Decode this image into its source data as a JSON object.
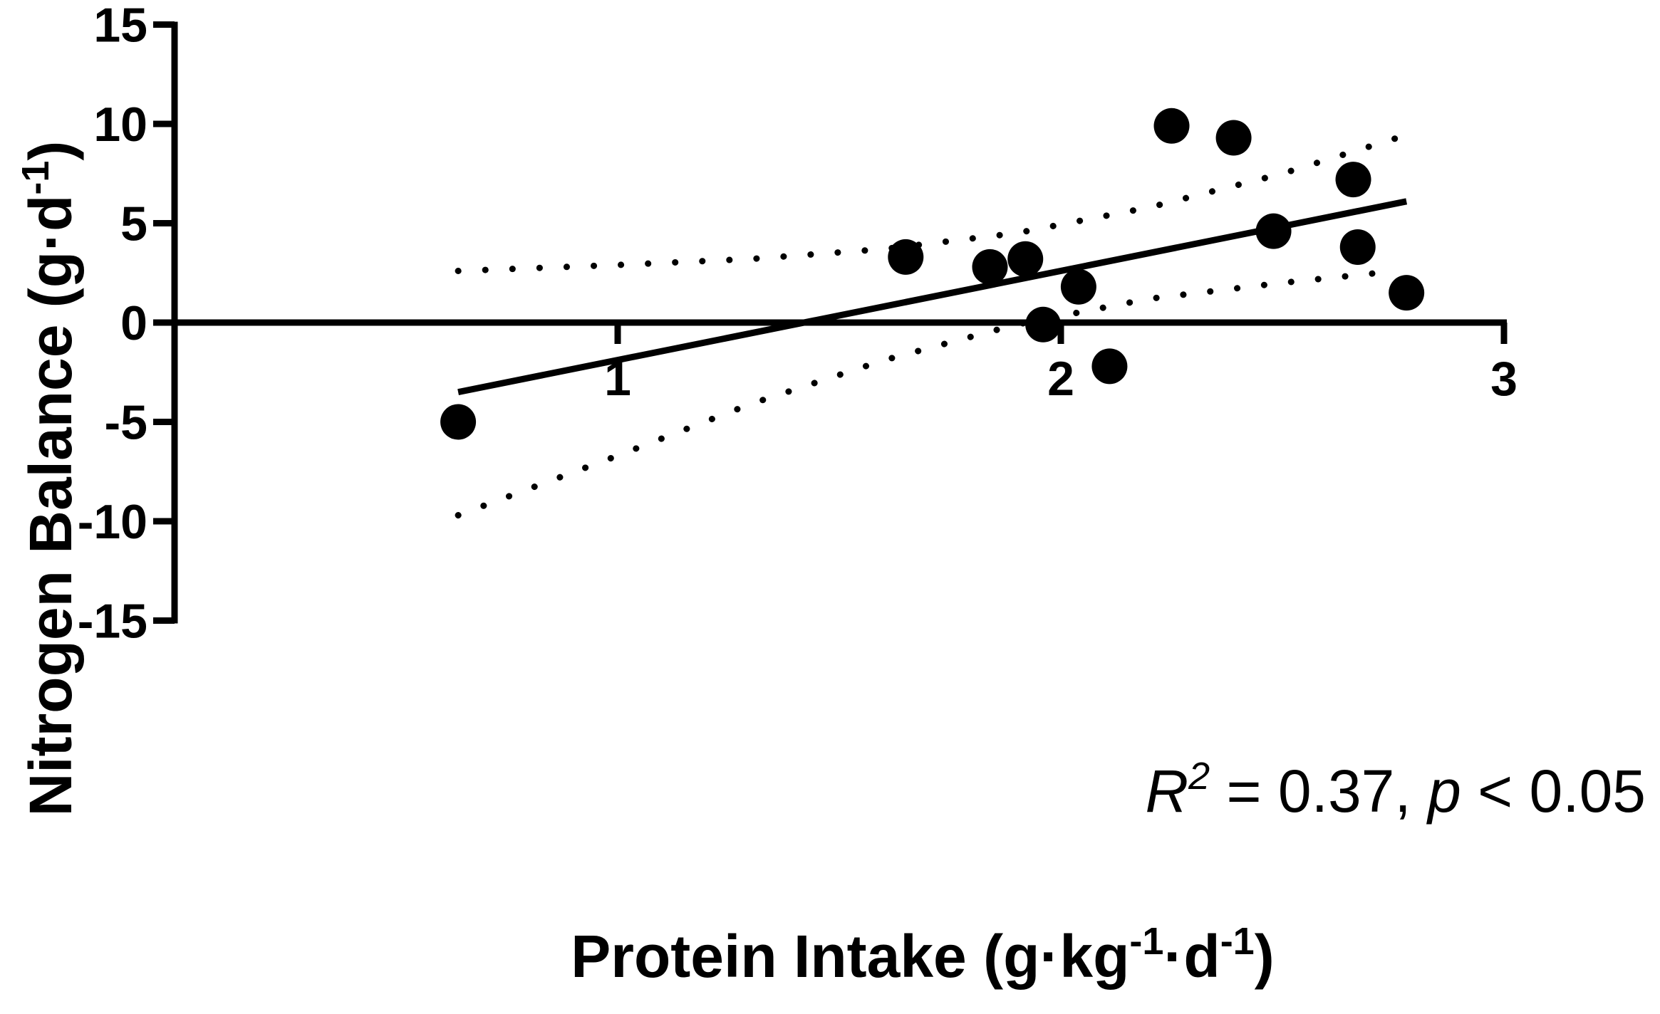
{
  "chart_data": {
    "type": "scatter",
    "title": "",
    "xlabel": {
      "main": "Protein Intake (g·kg",
      "sup1": "-1",
      "mid": "·d",
      "sup2": "-1",
      "end": ")"
    },
    "ylabel": {
      "main": "Nitrogen Balance (g·d",
      "sup": "-1",
      "end": ")"
    },
    "xlim": [
      0,
      3
    ],
    "ylim": [
      -15,
      15
    ],
    "x_ticks": [
      1,
      2,
      3
    ],
    "x_tick_labels": [
      "1",
      "2",
      "3"
    ],
    "y_ticks": [
      -15,
      -10,
      -5,
      0,
      5,
      10,
      15
    ],
    "y_tick_labels": [
      "-15",
      "-10",
      "-5",
      "0",
      "5",
      "10",
      "15"
    ],
    "grid": false,
    "colors": {
      "points": "#000000",
      "lines": "#000000"
    },
    "points": [
      {
        "x": 0.64,
        "y": -5.0
      },
      {
        "x": 1.65,
        "y": 3.3
      },
      {
        "x": 1.84,
        "y": 2.8
      },
      {
        "x": 1.92,
        "y": 3.2
      },
      {
        "x": 1.96,
        "y": -0.1
      },
      {
        "x": 2.04,
        "y": 1.8
      },
      {
        "x": 2.11,
        "y": -2.2
      },
      {
        "x": 2.25,
        "y": 9.9
      },
      {
        "x": 2.39,
        "y": 9.3
      },
      {
        "x": 2.48,
        "y": 4.6
      },
      {
        "x": 2.66,
        "y": 7.2
      },
      {
        "x": 2.67,
        "y": 3.8
      },
      {
        "x": 2.78,
        "y": 1.5
      }
    ],
    "regression_line": {
      "x": [
        0.64,
        2.78
      ],
      "y": [
        -3.5,
        6.1
      ]
    },
    "confidence_upper": {
      "x": [
        0.64,
        1.0,
        1.3,
        1.6,
        1.9,
        2.2,
        2.5,
        2.76
      ],
      "y": [
        2.6,
        2.9,
        3.2,
        3.7,
        4.5,
        5.8,
        7.5,
        9.3
      ]
    },
    "confidence_lower": {
      "x": [
        0.64,
        1.0,
        1.3,
        1.6,
        1.9,
        2.2,
        2.5,
        2.76
      ],
      "y": [
        -9.7,
        -6.7,
        -4.1,
        -1.9,
        -0.1,
        1.2,
        2.0,
        2.6
      ]
    },
    "annotation": {
      "r_symbol": "R",
      "r_exp": "2",
      "r_text": " = 0.37, ",
      "p_symbol": "p",
      "p_text": " < 0.05"
    }
  }
}
